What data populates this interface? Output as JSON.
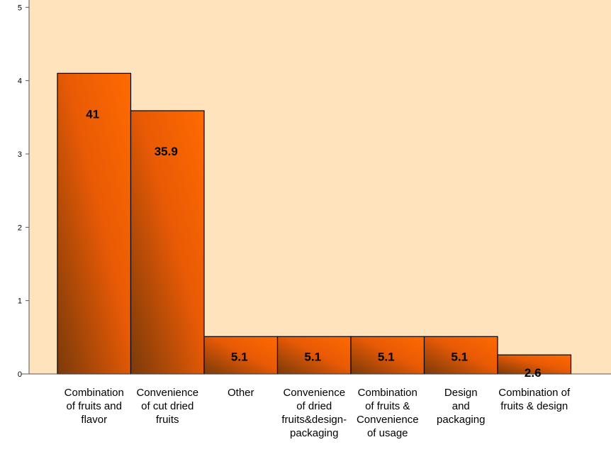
{
  "chart_data": {
    "type": "bar",
    "categories": [
      [
        "Combination",
        "of fruits and",
        "flavor"
      ],
      [
        "Convenience",
        "of cut dried",
        "fruits"
      ],
      [
        "Other"
      ],
      [
        "Convenience",
        "of dried",
        "fruits&design-",
        "packaging"
      ],
      [
        "Combination",
        "of fruits &",
        "Convenience",
        "of usage"
      ],
      [
        "Design",
        "and",
        "packaging"
      ],
      [
        "Combination of",
        "fruits & design"
      ]
    ],
    "values": [
      4.1,
      3.59,
      0.51,
      0.51,
      0.51,
      0.51,
      0.26
    ],
    "data_labels": [
      "41",
      "35.9",
      "5.1",
      "5.1",
      "5.1",
      "5.1",
      "2.6"
    ],
    "yticks": [
      "0",
      "1",
      "2",
      "3",
      "4",
      "5"
    ],
    "ylim": [
      0,
      5.1
    ],
    "grid": false,
    "colors": {
      "plot_background": "#FFE3BD",
      "bar_light": "#FF6600",
      "bar_dark": "#7A3A0A"
    }
  }
}
